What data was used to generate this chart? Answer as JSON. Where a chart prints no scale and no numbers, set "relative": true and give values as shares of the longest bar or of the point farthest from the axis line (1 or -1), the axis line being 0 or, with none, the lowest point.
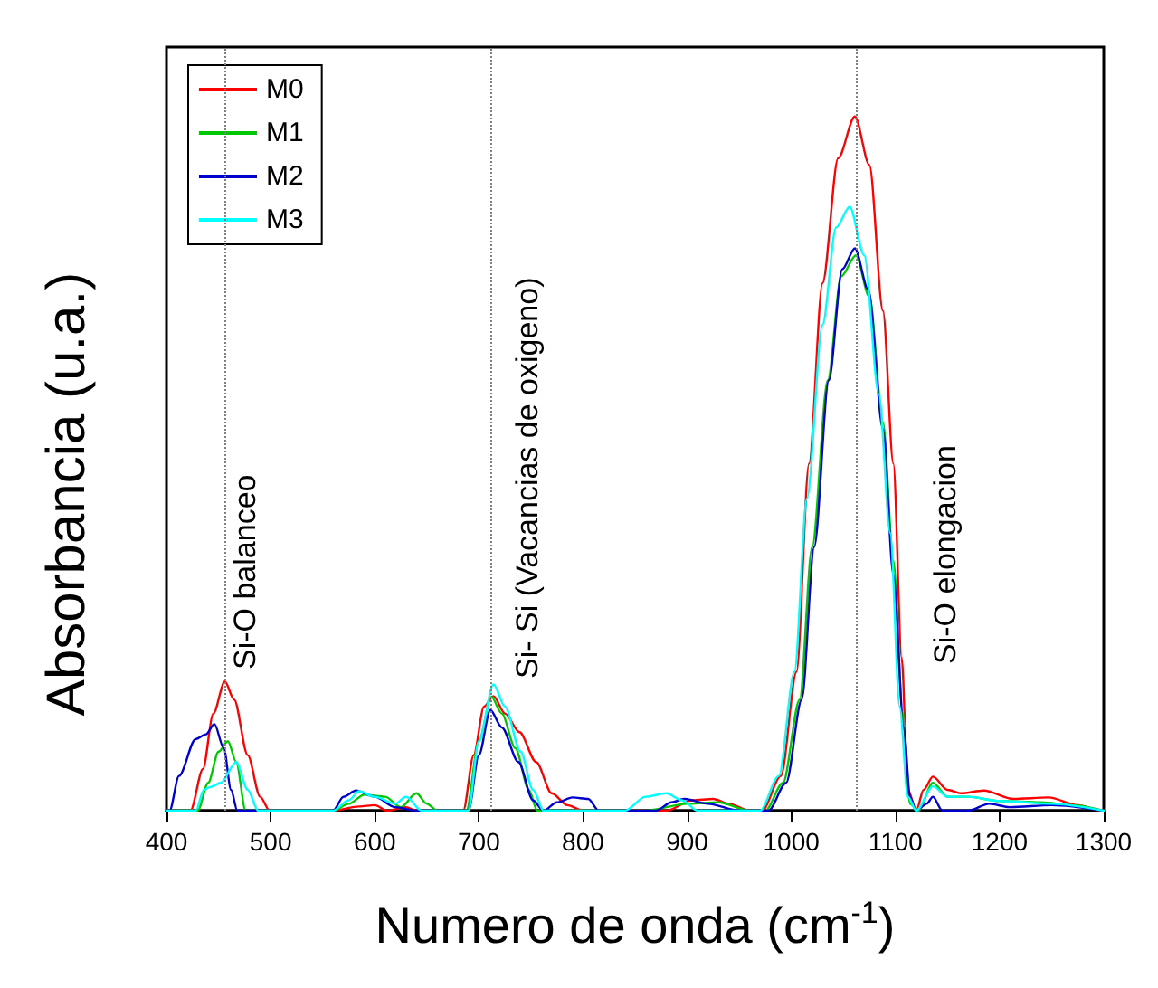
{
  "chart_data": {
    "type": "line",
    "relative": true,
    "xlabel": "Numero de onda (cm$^{-1}$)",
    "ylabel": "Absorbancia (u.a.)",
    "xlim": [
      400,
      1300
    ],
    "xticks": [
      400,
      500,
      600,
      700,
      800,
      900,
      1000,
      1100,
      1200,
      1300
    ],
    "legend": "top left",
    "grid": false,
    "marker": "none",
    "line_style": "solid",
    "ref_lines": [
      {
        "axis": "x",
        "value": 456,
        "color": "#808080",
        "line_style": "dotted"
      },
      {
        "axis": "x",
        "value": 712,
        "color": "#808080",
        "line_style": "dotted"
      },
      {
        "axis": "x",
        "value": 1062,
        "color": "#808080",
        "line_style": "dotted"
      }
    ],
    "annotations": [
      "Si-O balanceo",
      "Si- Si (Vacancias de oxigeno)",
      "Si-O elongacion"
    ],
    "series": [
      {
        "name": "M0",
        "color": "#ff0000",
        "x": [
          400,
          423,
          435,
          445,
          456,
          465,
          478,
          490,
          499,
          560,
          585,
          600,
          612,
          630,
          640,
          685,
          695,
          705,
          714,
          725,
          739,
          755,
          770,
          785,
          800,
          880,
          905,
          925,
          940,
          960,
          972,
          990,
          1005,
          1017,
          1030,
          1045,
          1061,
          1075,
          1088,
          1098,
          1106,
          1112,
          1120,
          1127,
          1136,
          1150,
          1163,
          1185,
          1213,
          1247,
          1275,
          1298,
          1300
        ],
        "values": [
          0,
          0,
          0.06,
          0.14,
          0.186,
          0.16,
          0.08,
          0.02,
          0,
          0,
          0.006,
          0.008,
          0,
          0.005,
          0,
          0,
          0.08,
          0.15,
          0.165,
          0.14,
          0.113,
          0.07,
          0.025,
          0.008,
          0,
          0,
          0.015,
          0.017,
          0.01,
          0,
          0,
          0.05,
          0.2,
          0.5,
          0.76,
          0.94,
          1.0,
          0.93,
          0.72,
          0.5,
          0.22,
          0.03,
          0,
          0.03,
          0.049,
          0.03,
          0.025,
          0.029,
          0.017,
          0.019,
          0.008,
          0,
          0
        ]
      },
      {
        "name": "M1",
        "color": "#00c800",
        "x": [
          400,
          430,
          440,
          450,
          459,
          467,
          476,
          560,
          575,
          590,
          610,
          625,
          640,
          650,
          660,
          688,
          700,
          712,
          722,
          735,
          748,
          756,
          800,
          860,
          900,
          930,
          960,
          975,
          992,
          1008,
          1020,
          1035,
          1048,
          1062,
          1075,
          1088,
          1098,
          1107,
          1114,
          1122,
          1136,
          1150,
          1170,
          1200,
          1240,
          1270,
          1300
        ],
        "values": [
          0,
          0,
          0.04,
          0.085,
          0.1,
          0.07,
          0,
          0,
          0.01,
          0.023,
          0.02,
          0.005,
          0.025,
          0.01,
          0,
          0,
          0.1,
          0.164,
          0.14,
          0.09,
          0.03,
          0,
          0,
          0,
          0.01,
          0.012,
          0,
          0,
          0.04,
          0.16,
          0.38,
          0.62,
          0.77,
          0.8,
          0.74,
          0.56,
          0.36,
          0.14,
          0.01,
          0,
          0.04,
          0.02,
          0.02,
          0.014,
          0.012,
          0.008,
          0
        ]
      },
      {
        "name": "M2",
        "color": "#0000cc",
        "x": [
          400,
          403,
          412,
          428,
          438,
          446,
          455,
          462,
          468,
          560,
          570,
          582,
          600,
          620,
          640,
          690,
          700,
          711,
          722,
          738,
          752,
          762,
          775,
          790,
          805,
          815,
          870,
          885,
          897,
          920,
          950,
          978,
          995,
          1010,
          1022,
          1036,
          1049,
          1061,
          1074,
          1088,
          1098,
          1108,
          1114,
          1120,
          1130,
          1136,
          1145,
          1170,
          1190,
          1210,
          1250,
          1300
        ],
        "values": [
          0,
          0,
          0.05,
          0.103,
          0.11,
          0.125,
          0.09,
          0.03,
          0,
          0,
          0.02,
          0.029,
          0.02,
          0.005,
          0,
          0,
          0.08,
          0.145,
          0.12,
          0.07,
          0.015,
          0,
          0.012,
          0.019,
          0.017,
          0,
          0,
          0.012,
          0.017,
          0.01,
          0,
          0,
          0.04,
          0.16,
          0.38,
          0.62,
          0.78,
          0.81,
          0.75,
          0.55,
          0.34,
          0.12,
          0.02,
          0,
          0.01,
          0.02,
          0,
          0,
          0.01,
          0.005,
          0.008,
          0
        ]
      },
      {
        "name": "M3",
        "color": "#00ffff",
        "x": [
          400,
          428,
          436,
          442,
          452,
          467,
          478,
          488,
          560,
          575,
          585,
          600,
          620,
          630,
          645,
          690,
          700,
          714,
          725,
          740,
          752,
          762,
          840,
          860,
          880,
          895,
          910,
          970,
          988,
          1003,
          1015,
          1030,
          1043,
          1056,
          1070,
          1084,
          1095,
          1104,
          1112,
          1120,
          1136,
          1150,
          1170,
          1200,
          1250,
          1300
        ],
        "values": [
          0,
          0,
          0.03,
          0.034,
          0.04,
          0.07,
          0.03,
          0,
          0,
          0.015,
          0.028,
          0.02,
          0.01,
          0.02,
          0,
          0,
          0.1,
          0.182,
          0.15,
          0.085,
          0.03,
          0,
          0,
          0.02,
          0.025,
          0.015,
          0,
          0,
          0.05,
          0.2,
          0.45,
          0.7,
          0.84,
          0.87,
          0.8,
          0.6,
          0.4,
          0.15,
          0.02,
          0,
          0.035,
          0.02,
          0.02,
          0.014,
          0.01,
          0
        ]
      }
    ]
  }
}
